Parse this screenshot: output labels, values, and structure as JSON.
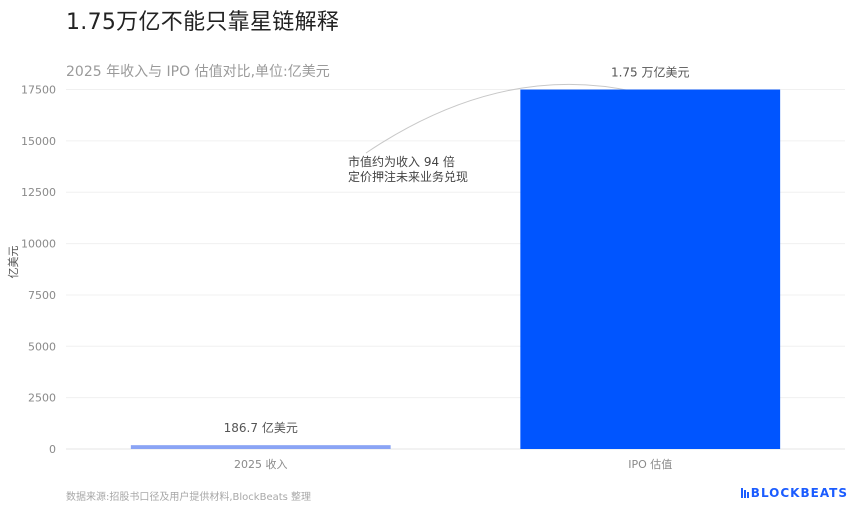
{
  "title": "1.75万亿不能只靠星链解释",
  "subtitle": "2025 年收入与 IPO 估值对比,单位:亿美元",
  "source": "数据来源:招股书口径及用户提供材料,BlockBeats 整理",
  "logo": "BLOCKBEATS",
  "chart_data": {
    "type": "bar",
    "categories": [
      "2025 收入",
      "IPO 估值"
    ],
    "values": [
      186.7,
      17500
    ],
    "value_labels": [
      "186.7 亿美元",
      "1.75 万亿美元"
    ],
    "ylabel": "亿美元",
    "ylim": [
      0,
      18500
    ],
    "yticks": [
      0,
      2500,
      5000,
      7500,
      10000,
      12500,
      15000,
      17500
    ],
    "grid": true,
    "colors": [
      "#8aa4f5",
      "#0055ff"
    ],
    "annotation": [
      "市值约为收入 94 倍",
      "定价押注未来业务兑现"
    ]
  }
}
